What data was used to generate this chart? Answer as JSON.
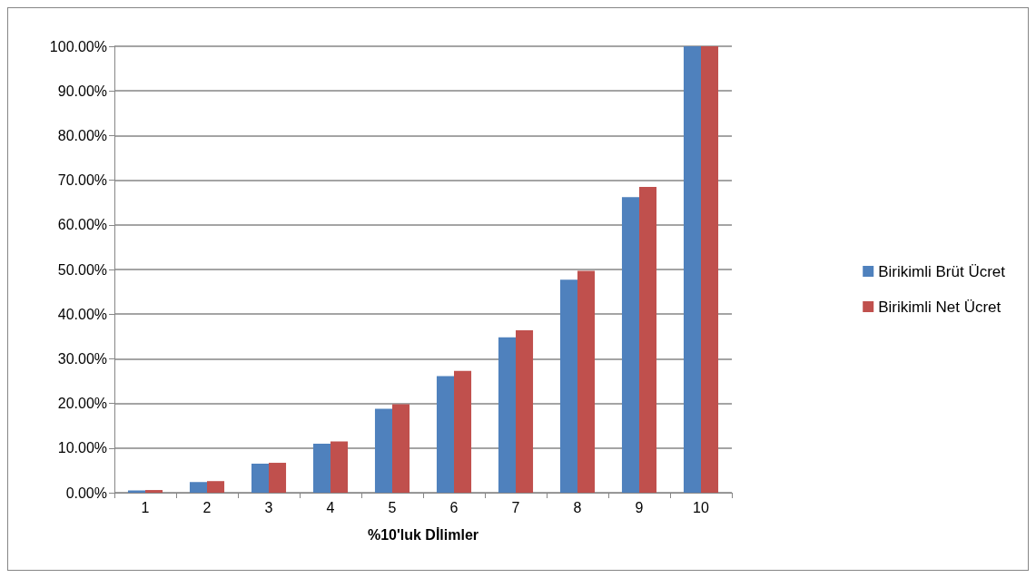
{
  "chart_data": {
    "type": "bar",
    "xlabel": "%10'luk Dİlimler",
    "categories": [
      "1",
      "2",
      "3",
      "4",
      "5",
      "6",
      "7",
      "8",
      "9",
      "10"
    ],
    "series": [
      {
        "name": "Birikimli Brüt Ücret",
        "color": "#4f81bd",
        "values": [
          0.5,
          2.4,
          6.5,
          11.0,
          18.8,
          26.1,
          34.8,
          47.7,
          66.2,
          100
        ]
      },
      {
        "name": "Birikimli Net Ücret",
        "color": "#c0504d",
        "values": [
          0.6,
          2.6,
          6.7,
          11.5,
          19.8,
          27.3,
          36.4,
          49.7,
          68.5,
          100
        ]
      }
    ],
    "ylim": [
      0,
      100
    ],
    "yticks": [
      {
        "value": 0,
        "label": "0.00%"
      },
      {
        "value": 10,
        "label": "10.00%"
      },
      {
        "value": 20,
        "label": "20.00%"
      },
      {
        "value": 30,
        "label": "30.00%"
      },
      {
        "value": 40,
        "label": "40.00%"
      },
      {
        "value": 50,
        "label": "50.00%"
      },
      {
        "value": 60,
        "label": "60.00%"
      },
      {
        "value": 70,
        "label": "70.00%"
      },
      {
        "value": 80,
        "label": "80.00%"
      },
      {
        "value": 90,
        "label": "90.00%"
      },
      {
        "value": 100,
        "label": "100.00%"
      }
    ],
    "grid": "y",
    "legend": "right"
  }
}
